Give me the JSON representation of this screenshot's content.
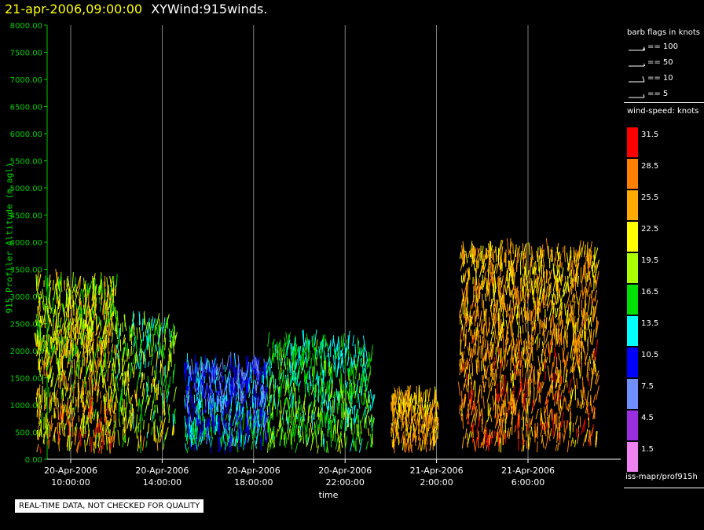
{
  "header": {
    "date": "21-apr-2006,09:00:00",
    "product": "XYWind:915winds."
  },
  "chart_data": {
    "type": "scatter",
    "title": "21-apr-2006,09:00:00 XYWind:915winds.",
    "xlabel": "time",
    "ylabel": "915 Profiler Altitude (m agl)",
    "ylim": [
      0,
      8000
    ],
    "yticks": [
      "0.00",
      "500.00",
      "1000.00",
      "1500.00",
      "2000.00",
      "2500.00",
      "3000.00",
      "3500.00",
      "4000.00",
      "4500.00",
      "5000.00",
      "5500.00",
      "6000.00",
      "6500.00",
      "7000.00",
      "7500.00",
      "8000.00"
    ],
    "xlim": [
      "20-Apr-2006 08:30",
      "21-Apr-2006 09:00"
    ],
    "xticks": [
      {
        "date": "20-Apr-2006",
        "time": "10:00:00"
      },
      {
        "date": "20-Apr-2006",
        "time": "14:00:00"
      },
      {
        "date": "20-Apr-2006",
        "time": "18:00:00"
      },
      {
        "date": "20-Apr-2006",
        "time": "22:00:00"
      },
      {
        "date": "21-Apr-2006",
        "time": "2:00:00"
      },
      {
        "date": "21-Apr-2006",
        "time": "6:00:00"
      }
    ],
    "grid": "vertical",
    "series": [
      {
        "x": "20-Apr-2006 08:30-12:00",
        "y_range": [
          100,
          3200
        ],
        "wind_speed_knots": [
          10,
          33
        ]
      },
      {
        "x": "20-Apr-2006 12:00-14:30",
        "y_range": [
          100,
          2500
        ],
        "wind_speed_knots": [
          8,
          28
        ]
      },
      {
        "x": "20-Apr-2006 15:00-18:30",
        "y_range": [
          100,
          1700
        ],
        "wind_speed_knots": [
          3,
          18
        ]
      },
      {
        "x": "20-Apr-2006 18:30-23:10",
        "y_range": [
          100,
          2100
        ],
        "wind_speed_knots": [
          10,
          22
        ]
      },
      {
        "x": "21-Apr-2006 00:00-02:00",
        "y_range": [
          100,
          1100
        ],
        "wind_speed_knots": [
          20,
          30
        ]
      },
      {
        "x": "21-Apr-2006 03:00-09:00",
        "y_range": [
          100,
          3800
        ],
        "wind_speed_knots": [
          18,
          33
        ]
      }
    ]
  },
  "legend": {
    "barb_title": "barb flags in knots",
    "barbs": [
      "== 100",
      "== 50",
      "== 10",
      "== 5"
    ],
    "speed_title": "wind-speed: knots",
    "speeds": [
      {
        "label": "31.5",
        "color": "#ff0000"
      },
      {
        "label": "28.5",
        "color": "#ff7f00"
      },
      {
        "label": "25.5",
        "color": "#ffaa00"
      },
      {
        "label": "22.5",
        "color": "#ffff00"
      },
      {
        "label": "19.5",
        "color": "#aaff00"
      },
      {
        "label": "16.5",
        "color": "#00e000"
      },
      {
        "label": "13.5",
        "color": "#00ffff"
      },
      {
        "label": "10.5",
        "color": "#0000ff"
      },
      {
        "label": "7.5",
        "color": "#6f8fff"
      },
      {
        "label": "4.5",
        "color": "#9b2fe0"
      },
      {
        "label": "1.5",
        "color": "#ee82ee"
      }
    ]
  },
  "footer": "iss-mapr/prof915h",
  "notice": "REAL-TIME DATA, NOT CHECKED FOR QUALITY"
}
